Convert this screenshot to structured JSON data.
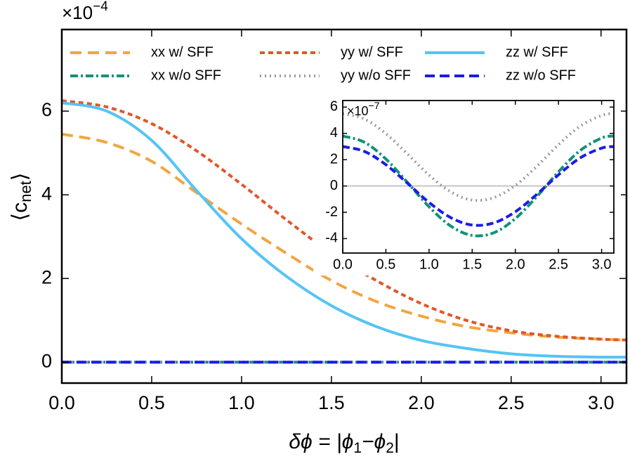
{
  "chart_data": [
    {
      "type": "line",
      "y_multiplier": [
        "×10",
        "−4"
      ],
      "ylabel": [
        "⟨c",
        "net",
        "⟩"
      ],
      "xlabel": [
        "δϕ = |ϕ",
        "1",
        "−ϕ",
        "2",
        "|"
      ],
      "x": [
        0,
        0.25,
        0.5,
        0.75,
        1.0,
        1.25,
        1.5,
        1.75,
        2.0,
        2.25,
        2.5,
        2.75,
        3.0,
        3.1416
      ],
      "series": [
        {
          "name": "xx w/ SFF",
          "color": "#f2a541",
          "dash": "16,9",
          "values": [
            5.45,
            5.25,
            4.8,
            4.05,
            3.3,
            2.6,
            1.95,
            1.45,
            1.1,
            0.85,
            0.7,
            0.6,
            0.55,
            0.53
          ]
        },
        {
          "name": "yy w/ SFF",
          "color": "#e0572a",
          "dash": "7,5",
          "values": [
            6.25,
            6.1,
            5.7,
            5.05,
            4.25,
            3.4,
            2.6,
            1.95,
            1.4,
            1.0,
            0.75,
            0.62,
            0.55,
            0.53
          ]
        },
        {
          "name": "zz w/ SFF",
          "color": "#55c4f4",
          "dash": "none",
          "values": [
            6.2,
            6.0,
            5.3,
            4.1,
            2.95,
            2.05,
            1.35,
            0.85,
            0.52,
            0.33,
            0.2,
            0.14,
            0.12,
            0.12
          ]
        },
        {
          "name": "xx w/o SFF",
          "color": "#12917a",
          "dash": "11,4,3,4",
          "values": [
            0,
            0,
            0,
            0,
            0,
            0,
            0,
            0,
            0,
            0,
            0,
            0,
            0,
            0
          ]
        },
        {
          "name": "yy w/o SFF",
          "color": "#9a9a9a",
          "dash": "2,5",
          "values": [
            0,
            0,
            0,
            0,
            0,
            0,
            0,
            0,
            0,
            0,
            0,
            0,
            0,
            0
          ]
        },
        {
          "name": "zz w/o SFF",
          "color": "#1c1ce6",
          "dash": "14,7",
          "values": [
            0,
            0,
            0,
            0,
            0,
            0,
            0,
            0,
            0,
            0,
            0,
            0,
            0,
            0
          ]
        }
      ],
      "xlim": [
        0,
        3.1416
      ],
      "ylim": [
        -0.5,
        7.95
      ],
      "xticks": [
        {
          "value": 0,
          "label": "0.0"
        },
        {
          "value": 0.5,
          "label": "0.5"
        },
        {
          "value": 1,
          "label": "1.0"
        },
        {
          "value": 1.5,
          "label": "1.5"
        },
        {
          "value": 2,
          "label": "2.0"
        },
        {
          "value": 2.5,
          "label": "2.5"
        },
        {
          "value": 3,
          "label": "3.0"
        }
      ],
      "yticks": [
        0,
        2,
        4,
        6
      ],
      "legend": "top",
      "grid": false
    },
    {
      "type": "line",
      "y_multiplier": [
        "×10",
        "−7"
      ],
      "x": [
        0,
        0.25,
        0.5,
        0.75,
        1.0,
        1.25,
        1.5,
        1.75,
        2.0,
        2.25,
        2.5,
        2.75,
        3.0,
        3.1416
      ],
      "series": [
        {
          "color": "#9a9a9a",
          "dash": "2,5",
          "values": [
            5.5,
            5.1,
            3.98,
            2.43,
            0.83,
            -0.44,
            -1.07,
            -0.89,
            0.04,
            1.5,
            3.14,
            4.54,
            5.37,
            5.5
          ]
        },
        {
          "color": "#12917a",
          "dash": "11,4,3,4",
          "values": [
            3.8,
            3.33,
            2.05,
            0.27,
            -1.58,
            -3.04,
            -3.76,
            -3.56,
            -2.48,
            -0.8,
            1.08,
            2.69,
            3.65,
            3.8
          ]
        },
        {
          "color": "#1c1ce6",
          "dash": "10,5",
          "values": [
            3.0,
            2.63,
            1.62,
            0.21,
            -1.25,
            -2.4,
            -2.97,
            -2.81,
            -1.96,
            -0.63,
            0.85,
            2.13,
            2.88,
            3.0
          ]
        }
      ],
      "xlim": [
        0,
        3.1416
      ],
      "ylim": [
        -5.1,
        6.5
      ],
      "xticks": [
        {
          "value": 0,
          "label": "0.0"
        },
        {
          "value": 0.5,
          "label": "0.5"
        },
        {
          "value": 1,
          "label": "1.0"
        },
        {
          "value": 1.5,
          "label": "1.5"
        },
        {
          "value": 2,
          "label": "2.0"
        },
        {
          "value": 2.5,
          "label": "2.5"
        },
        {
          "value": 3,
          "label": "3.0"
        }
      ],
      "yticks": [
        -4,
        -2,
        0,
        2,
        4,
        6
      ],
      "zero_line": true,
      "grid": false
    }
  ]
}
